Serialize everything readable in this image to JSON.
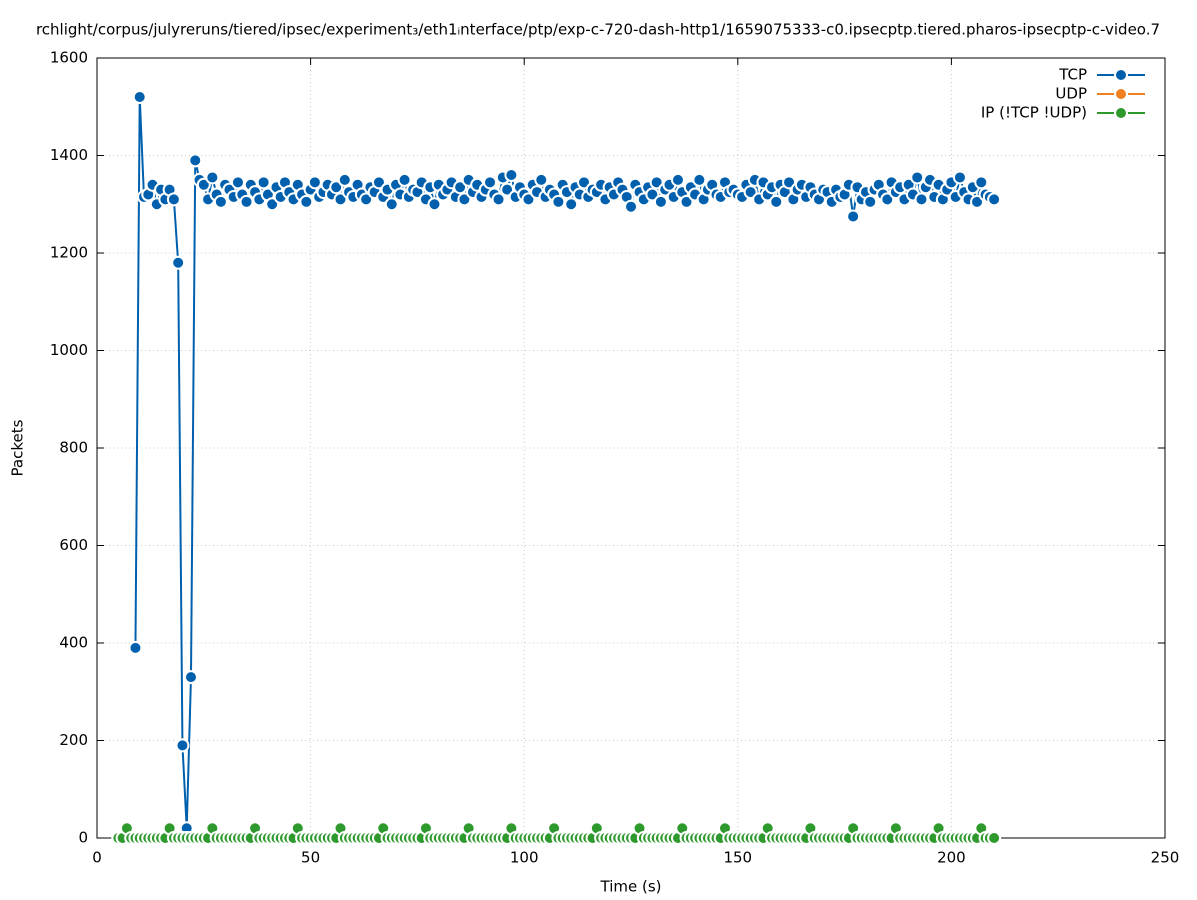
{
  "chart_data": {
    "type": "line",
    "title": "rchlight/corpus/julyreruns/tiered/ipsec/experiment₃/eth1ᵢnterface/ptp/exp-c-720-dash-http1/1659075333-c0.ipsecptp.tiered.pharos-ipsecptp-c-video.7",
    "x_label": "Time (s)",
    "y_label": "Packets",
    "xlim": [
      0,
      250
    ],
    "xticks": [
      0,
      50,
      100,
      150,
      200,
      250
    ],
    "ylim": [
      0,
      1600
    ],
    "yticks": [
      0,
      200,
      400,
      600,
      800,
      1000,
      1200,
      1400,
      1600
    ],
    "grid": true,
    "legend": "top-right",
    "x": [
      5,
      6,
      7,
      8,
      9,
      10,
      11,
      12,
      13,
      14,
      15,
      16,
      17,
      18,
      19,
      20,
      21,
      22,
      23,
      24,
      25,
      26,
      27,
      28,
      29,
      30,
      31,
      32,
      33,
      34,
      35,
      36,
      37,
      38,
      39,
      40,
      41,
      42,
      43,
      44,
      45,
      46,
      47,
      48,
      49,
      50,
      51,
      52,
      53,
      54,
      55,
      56,
      57,
      58,
      59,
      60,
      61,
      62,
      63,
      64,
      65,
      66,
      67,
      68,
      69,
      70,
      71,
      72,
      73,
      74,
      75,
      76,
      77,
      78,
      79,
      80,
      81,
      82,
      83,
      84,
      85,
      86,
      87,
      88,
      89,
      90,
      91,
      92,
      93,
      94,
      95,
      96,
      97,
      98,
      99,
      100,
      101,
      102,
      103,
      104,
      105,
      106,
      107,
      108,
      109,
      110,
      111,
      112,
      113,
      114,
      115,
      116,
      117,
      118,
      119,
      120,
      121,
      122,
      123,
      124,
      125,
      126,
      127,
      128,
      129,
      130,
      131,
      132,
      133,
      134,
      135,
      136,
      137,
      138,
      139,
      140,
      141,
      142,
      143,
      144,
      145,
      146,
      147,
      148,
      149,
      150,
      151,
      152,
      153,
      154,
      155,
      156,
      157,
      158,
      159,
      160,
      161,
      162,
      163,
      164,
      165,
      166,
      167,
      168,
      169,
      170,
      171,
      172,
      173,
      174,
      175,
      176,
      177,
      178,
      179,
      180,
      181,
      182,
      183,
      184,
      185,
      186,
      187,
      188,
      189,
      190,
      191,
      192,
      193,
      194,
      195,
      196,
      197,
      198,
      199,
      200,
      201,
      202,
      203,
      204,
      205,
      206,
      207,
      208,
      209,
      210
    ],
    "series": [
      {
        "name": "TCP",
        "color": "#0060ad",
        "values": [
          null,
          null,
          null,
          null,
          390,
          1520,
          1315,
          1320,
          1340,
          1300,
          1330,
          1310,
          1330,
          1310,
          1180,
          190,
          20,
          330,
          1390,
          1350,
          1340,
          1310,
          1355,
          1320,
          1305,
          1340,
          1330,
          1315,
          1345,
          1320,
          1305,
          1340,
          1325,
          1310,
          1345,
          1320,
          1300,
          1335,
          1315,
          1345,
          1325,
          1310,
          1340,
          1320,
          1305,
          1330,
          1345,
          1315,
          1325,
          1340,
          1320,
          1335,
          1310,
          1350,
          1325,
          1315,
          1340,
          1320,
          1310,
          1335,
          1325,
          1345,
          1315,
          1330,
          1300,
          1340,
          1320,
          1350,
          1315,
          1330,
          1325,
          1345,
          1310,
          1335,
          1300,
          1340,
          1320,
          1330,
          1345,
          1315,
          1335,
          1310,
          1350,
          1325,
          1340,
          1315,
          1330,
          1345,
          1320,
          1310,
          1355,
          1330,
          1360,
          1315,
          1335,
          1320,
          1310,
          1340,
          1325,
          1350,
          1315,
          1330,
          1320,
          1305,
          1340,
          1325,
          1300,
          1335,
          1320,
          1345,
          1315,
          1330,
          1325,
          1340,
          1310,
          1335,
          1320,
          1345,
          1330,
          1315,
          1295,
          1340,
          1325,
          1310,
          1335,
          1320,
          1345,
          1305,
          1330,
          1340,
          1315,
          1350,
          1325,
          1305,
          1335,
          1320,
          1350,
          1310,
          1330,
          1340,
          1320,
          1315,
          1345,
          1325,
          1330,
          1320,
          1315,
          1340,
          1325,
          1350,
          1310,
          1345,
          1320,
          1335,
          1305,
          1340,
          1325,
          1345,
          1310,
          1330,
          1340,
          1315,
          1335,
          1320,
          1310,
          1330,
          1325,
          1305,
          1330,
          1315,
          1320,
          1340,
          1275,
          1335,
          1310,
          1325,
          1305,
          1330,
          1340,
          1320,
          1310,
          1345,
          1325,
          1335,
          1310,
          1340,
          1320,
          1355,
          1310,
          1335,
          1350,
          1315,
          1340,
          1310,
          1330,
          1345,
          1315,
          1355,
          1325,
          1310,
          1335,
          1305,
          1345,
          1320,
          1315,
          1310
        ]
      },
      {
        "name": "UDP",
        "color": "#f07f1e",
        "values": [
          0,
          0,
          0,
          0,
          0,
          0,
          0,
          0,
          0,
          0,
          0,
          0,
          0,
          0,
          0,
          0,
          0,
          0,
          0,
          0,
          0,
          0,
          0,
          0,
          0,
          0,
          0,
          0,
          0,
          0,
          0,
          0,
          0,
          0,
          0,
          0,
          0,
          0,
          0,
          0,
          0,
          0,
          0,
          0,
          0,
          0,
          0,
          0,
          0,
          0,
          0,
          0,
          0,
          0,
          0,
          0,
          0,
          0,
          0,
          0,
          0,
          0,
          0,
          0,
          0,
          0,
          0,
          0,
          0,
          0,
          0,
          0,
          0,
          0,
          0,
          0,
          0,
          0,
          0,
          0,
          0,
          0,
          0,
          0,
          0,
          0,
          0,
          0,
          0,
          0,
          0,
          0,
          0,
          0,
          0,
          0,
          0,
          0,
          0,
          0,
          0,
          0,
          0,
          0,
          0,
          0,
          0,
          0,
          0,
          0,
          0,
          0,
          0,
          0,
          0,
          0,
          0,
          0,
          0,
          0,
          0,
          0,
          0,
          0,
          0,
          0,
          0,
          0,
          0,
          0,
          0,
          0,
          0,
          0,
          0,
          0,
          0,
          0,
          0,
          0,
          0,
          0,
          0,
          0,
          0,
          0,
          0,
          0,
          0,
          0,
          0,
          0,
          0,
          0,
          0,
          0,
          0,
          0,
          0,
          0,
          0,
          0,
          0,
          0,
          0,
          0,
          0,
          0,
          0,
          0,
          0,
          0,
          0,
          0,
          0,
          0,
          0,
          0,
          0,
          0,
          0,
          0,
          0,
          0,
          0,
          0,
          0,
          0,
          0,
          0,
          0,
          0,
          0,
          0,
          0,
          0,
          0,
          0,
          0,
          0,
          0,
          0,
          0,
          0,
          0,
          0
        ]
      },
      {
        "name": "IP (!TCP  !UDP)",
        "color": "#2e9a2e",
        "values": [
          0,
          0,
          20,
          0,
          0,
          0,
          0,
          0,
          0,
          0,
          0,
          0,
          20,
          0,
          0,
          0,
          0,
          0,
          0,
          0,
          0,
          0,
          20,
          0,
          0,
          0,
          0,
          0,
          0,
          0,
          0,
          0,
          20,
          0,
          0,
          0,
          0,
          0,
          0,
          0,
          0,
          0,
          20,
          0,
          0,
          0,
          0,
          0,
          0,
          0,
          0,
          0,
          20,
          0,
          0,
          0,
          0,
          0,
          0,
          0,
          0,
          0,
          20,
          0,
          0,
          0,
          0,
          0,
          0,
          0,
          0,
          0,
          20,
          0,
          0,
          0,
          0,
          0,
          0,
          0,
          0,
          0,
          20,
          0,
          0,
          0,
          0,
          0,
          0,
          0,
          0,
          0,
          20,
          0,
          0,
          0,
          0,
          0,
          0,
          0,
          0,
          0,
          20,
          0,
          0,
          0,
          0,
          0,
          0,
          0,
          0,
          0,
          20,
          0,
          0,
          0,
          0,
          0,
          0,
          0,
          0,
          0,
          20,
          0,
          0,
          0,
          0,
          0,
          0,
          0,
          0,
          0,
          20,
          0,
          0,
          0,
          0,
          0,
          0,
          0,
          0,
          0,
          20,
          0,
          0,
          0,
          0,
          0,
          0,
          0,
          0,
          0,
          20,
          0,
          0,
          0,
          0,
          0,
          0,
          0,
          0,
          0,
          20,
          0,
          0,
          0,
          0,
          0,
          0,
          0,
          0,
          0,
          20,
          0,
          0,
          0,
          0,
          0,
          0,
          0,
          0,
          0,
          20,
          0,
          0,
          0,
          0,
          0,
          0,
          0,
          0,
          0,
          20,
          0,
          0,
          0,
          0,
          0,
          0,
          0,
          0,
          0,
          20,
          0,
          0,
          0
        ]
      }
    ]
  }
}
